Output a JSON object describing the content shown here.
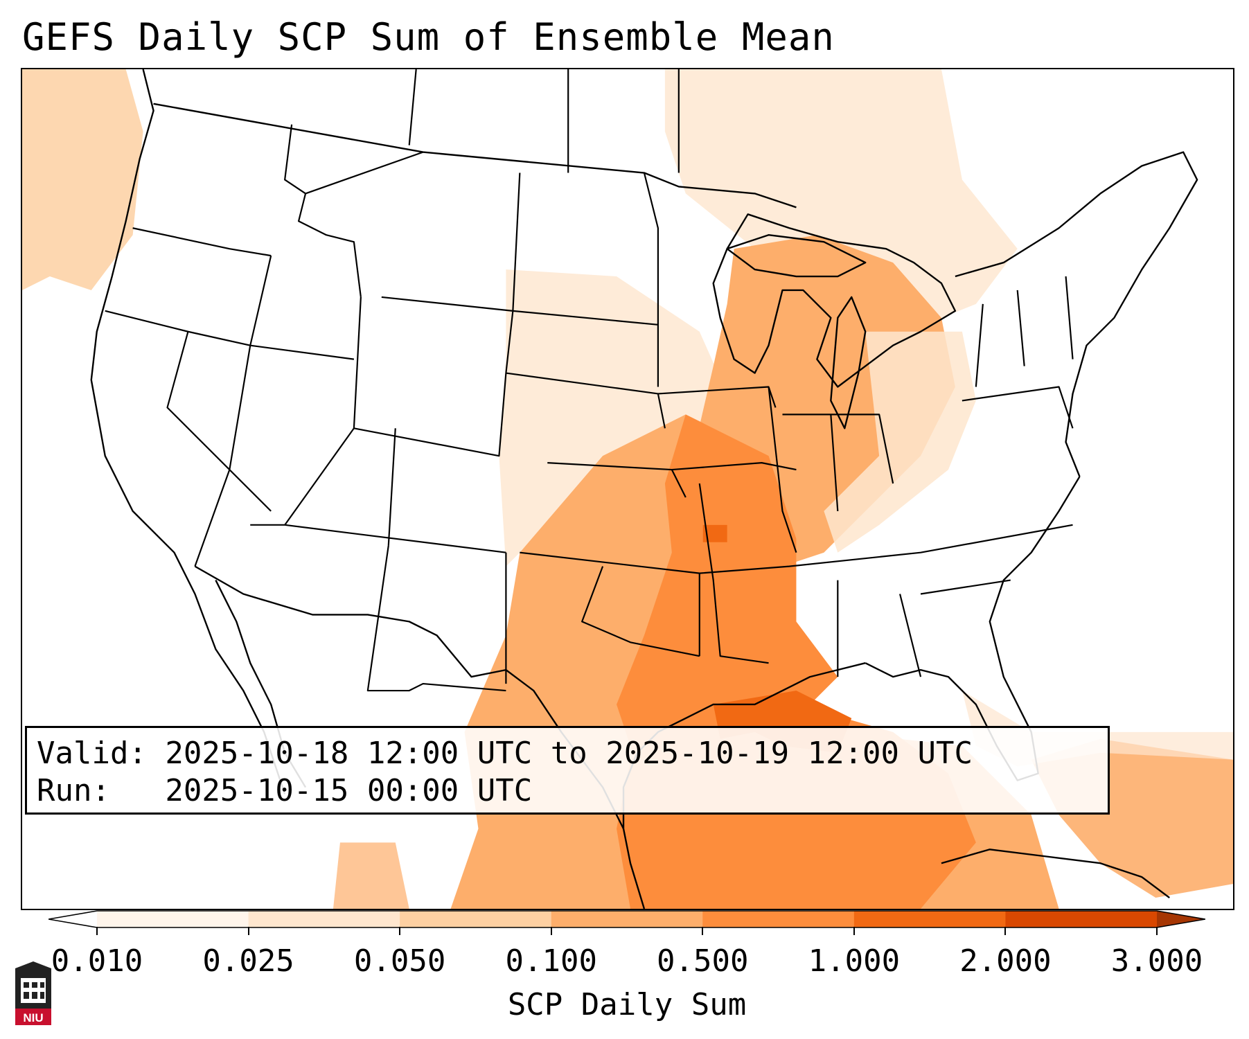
{
  "title": "GEFS Daily SCP Sum of Ensemble Mean",
  "info": {
    "valid_line": "Valid: 2025-10-18 12:00 UTC to 2025-10-19 12:00 UTC",
    "run_line": "Run:   2025-10-15 00:00 UTC"
  },
  "colorbar": {
    "label": "SCP Daily Sum",
    "ticks": [
      "0.010",
      "0.025",
      "0.050",
      "0.100",
      "0.500",
      "1.000",
      "2.000",
      "3.000"
    ],
    "colors": [
      "#fff5eb",
      "#fee6ce",
      "#fdd0a2",
      "#fdae6b",
      "#fd8d3c",
      "#f16913",
      "#d94801",
      "#a63603"
    ]
  },
  "logo": {
    "text": "NIU",
    "color": "#c8102e"
  }
}
